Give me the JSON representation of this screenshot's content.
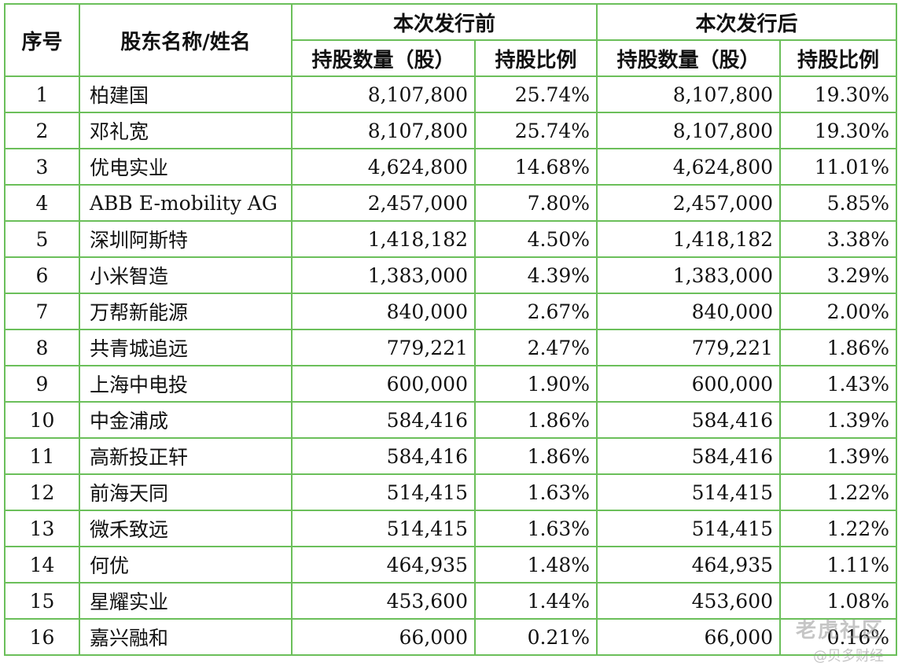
{
  "table": {
    "header": {
      "idx": "序号",
      "name": "股东名称/姓名",
      "before": "本次发行前",
      "after": "本次发行后",
      "shares": "持股数量（股）",
      "ratio": "持股比例"
    },
    "rows": [
      {
        "idx": "1",
        "name": "柏建国",
        "before_shares": "8,107,800",
        "before_ratio": "25.74%",
        "after_shares": "8,107,800",
        "after_ratio": "19.30%"
      },
      {
        "idx": "2",
        "name": "邓礼宽",
        "before_shares": "8,107,800",
        "before_ratio": "25.74%",
        "after_shares": "8,107,800",
        "after_ratio": "19.30%"
      },
      {
        "idx": "3",
        "name": "优电实业",
        "before_shares": "4,624,800",
        "before_ratio": "14.68%",
        "after_shares": "4,624,800",
        "after_ratio": "11.01%"
      },
      {
        "idx": "4",
        "name": "ABB E-mobility AG",
        "before_shares": "2,457,000",
        "before_ratio": "7.80%",
        "after_shares": "2,457,000",
        "after_ratio": "5.85%"
      },
      {
        "idx": "5",
        "name": "深圳阿斯特",
        "before_shares": "1,418,182",
        "before_ratio": "4.50%",
        "after_shares": "1,418,182",
        "after_ratio": "3.38%"
      },
      {
        "idx": "6",
        "name": "小米智造",
        "before_shares": "1,383,000",
        "before_ratio": "4.39%",
        "after_shares": "1,383,000",
        "after_ratio": "3.29%"
      },
      {
        "idx": "7",
        "name": "万帮新能源",
        "before_shares": "840,000",
        "before_ratio": "2.67%",
        "after_shares": "840,000",
        "after_ratio": "2.00%"
      },
      {
        "idx": "8",
        "name": "共青城追远",
        "before_shares": "779,221",
        "before_ratio": "2.47%",
        "after_shares": "779,221",
        "after_ratio": "1.86%"
      },
      {
        "idx": "9",
        "name": "上海中电投",
        "before_shares": "600,000",
        "before_ratio": "1.90%",
        "after_shares": "600,000",
        "after_ratio": "1.43%"
      },
      {
        "idx": "10",
        "name": "中金浦成",
        "before_shares": "584,416",
        "before_ratio": "1.86%",
        "after_shares": "584,416",
        "after_ratio": "1.39%"
      },
      {
        "idx": "11",
        "name": "高新投正轩",
        "before_shares": "584,416",
        "before_ratio": "1.86%",
        "after_shares": "584,416",
        "after_ratio": "1.39%"
      },
      {
        "idx": "12",
        "name": "前海天同",
        "before_shares": "514,415",
        "before_ratio": "1.63%",
        "after_shares": "514,415",
        "after_ratio": "1.22%"
      },
      {
        "idx": "13",
        "name": "微禾致远",
        "before_shares": "514,415",
        "before_ratio": "1.63%",
        "after_shares": "514,415",
        "after_ratio": "1.22%"
      },
      {
        "idx": "14",
        "name": "何优",
        "before_shares": "464,935",
        "before_ratio": "1.48%",
        "after_shares": "464,935",
        "after_ratio": "1.11%"
      },
      {
        "idx": "15",
        "name": "星耀实业",
        "before_shares": "453,600",
        "before_ratio": "1.44%",
        "after_shares": "453,600",
        "after_ratio": "1.08%"
      },
      {
        "idx": "16",
        "name": "嘉兴融和",
        "before_shares": "66,000",
        "before_ratio": "0.21%",
        "after_shares": "66,000",
        "after_ratio": "0.16%"
      }
    ]
  },
  "watermark": {
    "main": "老虎社区",
    "sub": "@贝多财经"
  },
  "colors": {
    "border": "#6bbf5a"
  }
}
